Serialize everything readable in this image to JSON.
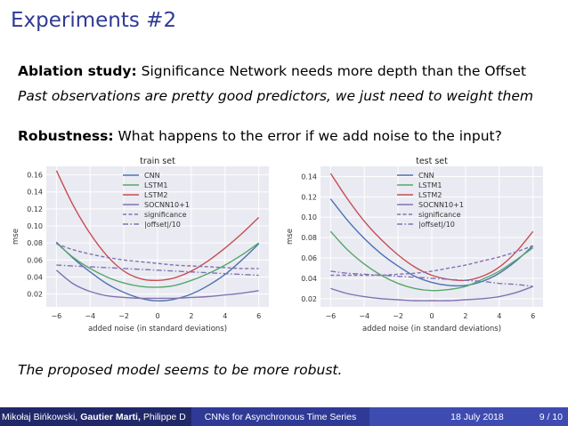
{
  "slide": {
    "title": "Experiments #2",
    "ablation_label": "Ablation study:",
    "ablation_text": " Significance Network needs more depth than the Offset",
    "observation": "Past observations are pretty good predictors, we just need to weight them",
    "robustness_label": "Robustness:",
    "robustness_text": " What happens to the error if we add noise to the input?",
    "conclusion": "The proposed model seems to be more robust."
  },
  "footer": {
    "author1": "Mikołaj Bińkowski,",
    "author2": "Gautier Marti,",
    "author3": "Philippe D",
    "title": "CNNs for Asynchronous Time Series",
    "date": "18 July 2018",
    "page": "9 / 10"
  },
  "chart_data": [
    {
      "type": "line",
      "title": "train set",
      "xlabel": "added noise (in standard deviations)",
      "ylabel": "mse",
      "xlim": [
        -6.6,
        6.6
      ],
      "ylim": [
        0.005,
        0.17
      ],
      "xticks": [
        -6,
        -4,
        -2,
        0,
        2,
        4,
        6
      ],
      "yticks": [
        0.02,
        0.04,
        0.06,
        0.08,
        0.1,
        0.12,
        0.14,
        0.16
      ],
      "grid": true,
      "legend": "upper-center",
      "x": [
        -6,
        -5,
        -4,
        -3,
        -2,
        -1,
        0,
        1,
        2,
        3,
        4,
        5,
        6
      ],
      "series": [
        {
          "name": "CNN",
          "color": "#4c72b0",
          "dash": "solid",
          "values": [
            0.081,
            0.062,
            0.046,
            0.032,
            0.022,
            0.015,
            0.012,
            0.014,
            0.02,
            0.03,
            0.043,
            0.06,
            0.079
          ]
        },
        {
          "name": "LSTM1",
          "color": "#55a868",
          "dash": "solid",
          "values": [
            0.08,
            0.063,
            0.05,
            0.04,
            0.033,
            0.029,
            0.028,
            0.03,
            0.036,
            0.044,
            0.054,
            0.066,
            0.08
          ]
        },
        {
          "name": "LSTM2",
          "color": "#c44e52",
          "dash": "solid",
          "values": [
            0.165,
            0.124,
            0.091,
            0.065,
            0.047,
            0.038,
            0.036,
            0.039,
            0.047,
            0.059,
            0.074,
            0.091,
            0.11
          ]
        },
        {
          "name": "SOCNN10+1",
          "color": "#8172b2",
          "dash": "solid",
          "values": [
            0.048,
            0.032,
            0.023,
            0.018,
            0.016,
            0.015,
            0.015,
            0.015,
            0.016,
            0.017,
            0.019,
            0.021,
            0.024
          ]
        },
        {
          "name": "significance",
          "color": "#8172b2",
          "dash": "dashed",
          "values": [
            0.079,
            0.072,
            0.067,
            0.063,
            0.06,
            0.058,
            0.056,
            0.054,
            0.053,
            0.052,
            0.051,
            0.05,
            0.05
          ]
        },
        {
          "name": "|offset|/10",
          "color": "#8172b2",
          "dash": "dashdot",
          "values": [
            0.054,
            0.053,
            0.052,
            0.051,
            0.05,
            0.049,
            0.048,
            0.047,
            0.046,
            0.045,
            0.044,
            0.043,
            0.042
          ]
        }
      ]
    },
    {
      "type": "line",
      "title": "test set",
      "xlabel": "added noise (in standard deviations)",
      "ylabel": "mse",
      "xlim": [
        -6.6,
        6.6
      ],
      "ylim": [
        0.012,
        0.15
      ],
      "xticks": [
        -6,
        -4,
        -2,
        0,
        2,
        4,
        6
      ],
      "yticks": [
        0.02,
        0.04,
        0.06,
        0.08,
        0.1,
        0.12,
        0.14
      ],
      "grid": true,
      "legend": "upper-right",
      "x": [
        -6,
        -5,
        -4,
        -3,
        -2,
        -1,
        0,
        1,
        2,
        3,
        4,
        5,
        6
      ],
      "series": [
        {
          "name": "CNN",
          "color": "#4c72b0",
          "dash": "solid",
          "values": [
            0.118,
            0.097,
            0.079,
            0.064,
            0.052,
            0.042,
            0.036,
            0.033,
            0.033,
            0.037,
            0.045,
            0.057,
            0.072
          ]
        },
        {
          "name": "LSTM1",
          "color": "#55a868",
          "dash": "solid",
          "values": [
            0.086,
            0.068,
            0.054,
            0.043,
            0.035,
            0.03,
            0.028,
            0.029,
            0.032,
            0.039,
            0.047,
            0.058,
            0.07
          ]
        },
        {
          "name": "LSTM2",
          "color": "#c44e52",
          "dash": "solid",
          "values": [
            0.143,
            0.118,
            0.096,
            0.078,
            0.063,
            0.051,
            0.043,
            0.039,
            0.038,
            0.042,
            0.051,
            0.066,
            0.086
          ]
        },
        {
          "name": "SOCNN10+1",
          "color": "#8172b2",
          "dash": "solid",
          "values": [
            0.03,
            0.025,
            0.022,
            0.02,
            0.019,
            0.018,
            0.018,
            0.018,
            0.019,
            0.02,
            0.022,
            0.026,
            0.032
          ]
        },
        {
          "name": "significance",
          "color": "#8172b2",
          "dash": "dashed",
          "values": [
            0.043,
            0.043,
            0.043,
            0.043,
            0.044,
            0.045,
            0.047,
            0.05,
            0.053,
            0.057,
            0.061,
            0.066,
            0.072
          ]
        },
        {
          "name": "|offset|/10",
          "color": "#8172b2",
          "dash": "dashdot",
          "values": [
            0.047,
            0.045,
            0.044,
            0.043,
            0.042,
            0.041,
            0.04,
            0.039,
            0.038,
            0.037,
            0.035,
            0.034,
            0.032
          ]
        }
      ]
    }
  ]
}
